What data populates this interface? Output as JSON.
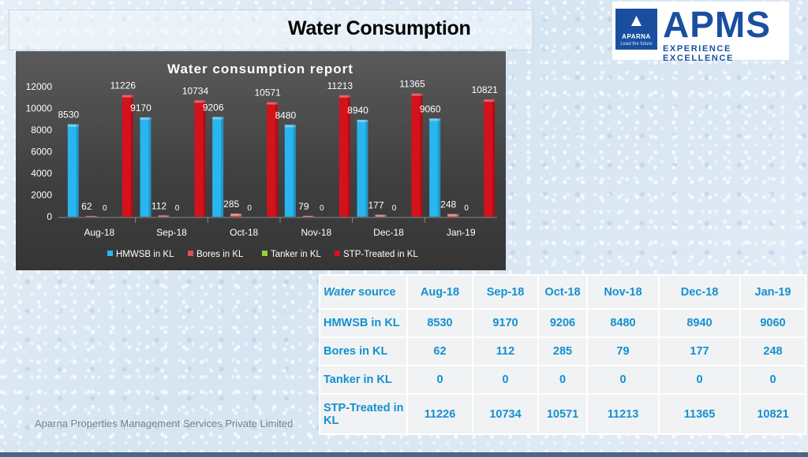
{
  "page": {
    "title": "Water Consumption",
    "footer": "Aparna Properties Management Services Private Limited"
  },
  "logo": {
    "brand": "APMS",
    "tagline": "EXPERIENCE EXCELLENCE",
    "mark_name": "APARNA",
    "mark_tagline": "Lead the future"
  },
  "chart_data": {
    "type": "bar",
    "title": "Water consumption report",
    "categories": [
      "Aug-18",
      "Sep-18",
      "Oct-18",
      "Nov-18",
      "Dec-18",
      "Jan-19"
    ],
    "series": [
      {
        "name": "HMWSB in KL",
        "color": "#29b6f0",
        "values": [
          8530,
          9170,
          9206,
          8480,
          8940,
          9060
        ]
      },
      {
        "name": "Bores in KL",
        "color": "#e05050",
        "values": [
          62,
          112,
          285,
          79,
          177,
          248
        ]
      },
      {
        "name": "Tanker in KL",
        "color": "#9acd32",
        "values": [
          0,
          0,
          0,
          0,
          0,
          0
        ]
      },
      {
        "name": "STP-Treated in KL",
        "color": "#d4121c",
        "values": [
          11226,
          10734,
          10571,
          11213,
          11365,
          10821
        ]
      }
    ],
    "yticks": [
      0,
      2000,
      4000,
      6000,
      8000,
      10000,
      12000
    ],
    "ylim": [
      0,
      12000
    ],
    "legend": "bottom",
    "grid": false
  },
  "table": {
    "header_italic": "Water",
    "header_rest": " source",
    "columns": [
      "Aug-18",
      "Sep-18",
      "Oct-18",
      "Nov-18",
      "Dec-18",
      "Jan-19"
    ],
    "rows": [
      {
        "label": "HMWSB in KL",
        "values": [
          "8530",
          "9170",
          "9206",
          "8480",
          "8940",
          "9060"
        ]
      },
      {
        "label": "Bores in KL",
        "values": [
          "62",
          "112",
          "285",
          "79",
          "177",
          "248"
        ]
      },
      {
        "label": "Tanker in KL",
        "values": [
          "0",
          "0",
          "0",
          "0",
          "0",
          "0"
        ]
      },
      {
        "label": "STP-Treated in KL",
        "values": [
          "11226",
          "10734",
          "10571",
          "11213",
          "11365",
          "10821"
        ]
      }
    ]
  }
}
